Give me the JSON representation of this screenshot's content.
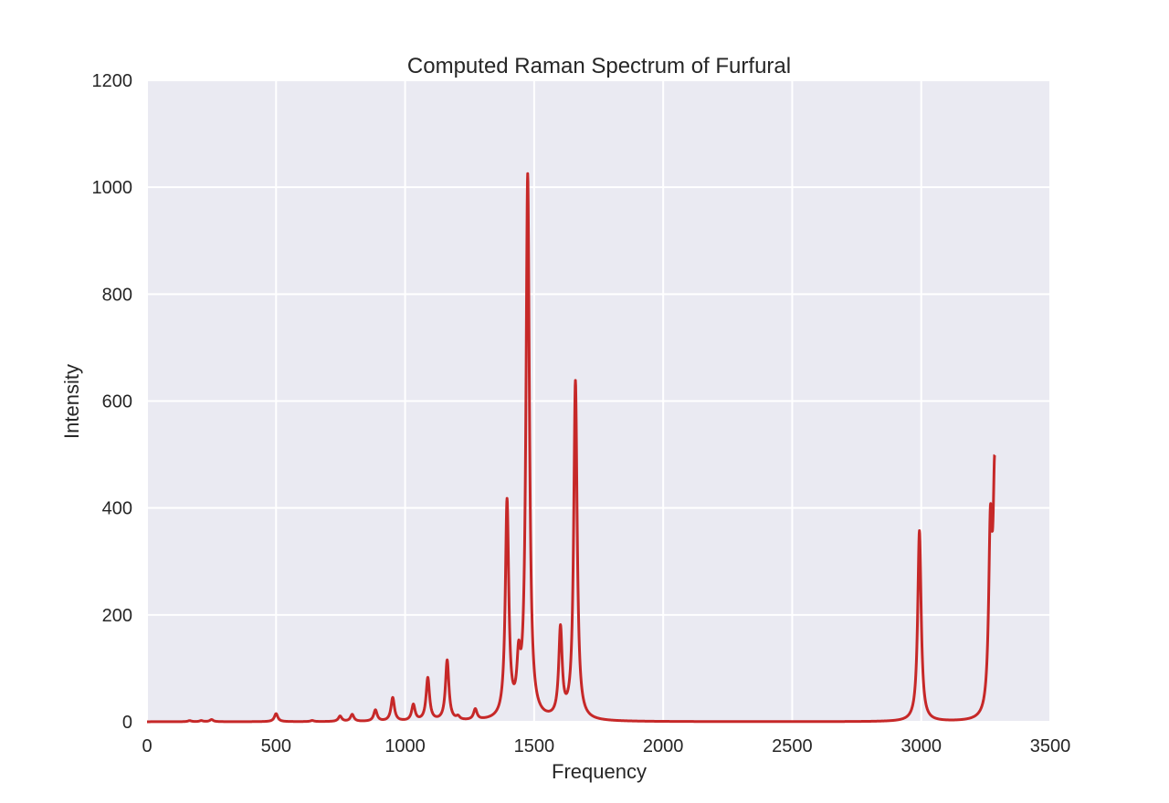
{
  "chart_data": {
    "type": "line",
    "title": "Computed Raman Spectrum of Furfural",
    "xlabel": "Frequency",
    "ylabel": "Intensity",
    "xlim": [
      0,
      3500
    ],
    "ylim": [
      0,
      1200
    ],
    "x_ticks": [
      "0",
      "500",
      "1000",
      "1500",
      "2000",
      "2500",
      "3000",
      "3500"
    ],
    "y_ticks": [
      "0",
      "200",
      "400",
      "600",
      "800",
      "1000",
      "1200"
    ],
    "grid": true,
    "background_color": "#eaeaf2",
    "grid_color": "#ffffff",
    "line_color": "#c62828",
    "x_max_plotted": 3285,
    "series": [
      {
        "peaks": [
          {
            "x": 165,
            "y": 2
          },
          {
            "x": 210,
            "y": 2
          },
          {
            "x": 250,
            "y": 4
          },
          {
            "x": 500,
            "y": 15
          },
          {
            "x": 640,
            "y": 2
          },
          {
            "x": 748,
            "y": 10
          },
          {
            "x": 795,
            "y": 13
          },
          {
            "x": 885,
            "y": 21
          },
          {
            "x": 952,
            "y": 44
          },
          {
            "x": 1032,
            "y": 30
          },
          {
            "x": 1088,
            "y": 80
          },
          {
            "x": 1163,
            "y": 113
          },
          {
            "x": 1205,
            "y": 6
          },
          {
            "x": 1272,
            "y": 20
          },
          {
            "x": 1395,
            "y": 404
          },
          {
            "x": 1440,
            "y": 88
          },
          {
            "x": 1475,
            "y": 1015
          },
          {
            "x": 1602,
            "y": 165
          },
          {
            "x": 1660,
            "y": 633
          },
          {
            "x": 2993,
            "y": 357
          },
          {
            "x": 3268,
            "y": 325
          },
          {
            "x": 3285,
            "y": 440
          }
        ]
      }
    ]
  }
}
